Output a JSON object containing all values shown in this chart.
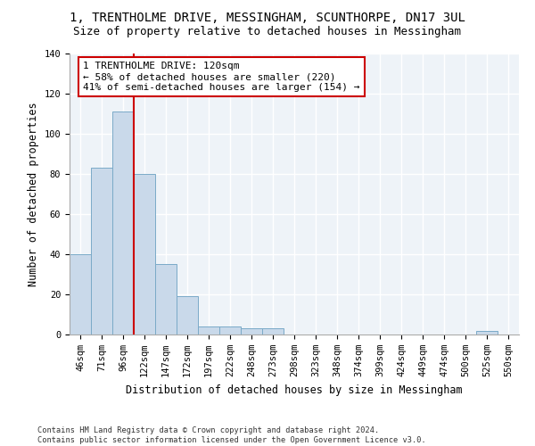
{
  "title_line1": "1, TRENTHOLME DRIVE, MESSINGHAM, SCUNTHORPE, DN17 3UL",
  "title_line2": "Size of property relative to detached houses in Messingham",
  "xlabel": "Distribution of detached houses by size in Messingham",
  "ylabel": "Number of detached properties",
  "footnote": "Contains HM Land Registry data © Crown copyright and database right 2024.\nContains public sector information licensed under the Open Government Licence v3.0.",
  "bar_labels": [
    "46sqm",
    "71sqm",
    "96sqm",
    "122sqm",
    "147sqm",
    "172sqm",
    "197sqm",
    "222sqm",
    "248sqm",
    "273sqm",
    "298sqm",
    "323sqm",
    "348sqm",
    "374sqm",
    "399sqm",
    "424sqm",
    "449sqm",
    "474sqm",
    "500sqm",
    "525sqm",
    "550sqm"
  ],
  "bar_values": [
    40,
    83,
    111,
    80,
    35,
    19,
    4,
    4,
    3,
    3,
    0,
    0,
    0,
    0,
    0,
    0,
    0,
    0,
    0,
    2,
    0
  ],
  "bar_color": "#c9d9ea",
  "bar_edgecolor": "#7aaac8",
  "vline_x": 2.5,
  "vline_color": "#cc0000",
  "annotation_text": "1 TRENTHOLME DRIVE: 120sqm\n← 58% of detached houses are smaller (220)\n41% of semi-detached houses are larger (154) →",
  "annotation_box_color": "#ffffff",
  "annotation_box_edgecolor": "#cc0000",
  "ylim": [
    0,
    140
  ],
  "yticks": [
    0,
    20,
    40,
    60,
    80,
    100,
    120,
    140
  ],
  "bg_color": "#eef3f8",
  "grid_color": "#ffffff",
  "title_fontsize": 10,
  "subtitle_fontsize": 9,
  "axis_label_fontsize": 8.5,
  "tick_fontsize": 7.5,
  "annot_fontsize": 8
}
